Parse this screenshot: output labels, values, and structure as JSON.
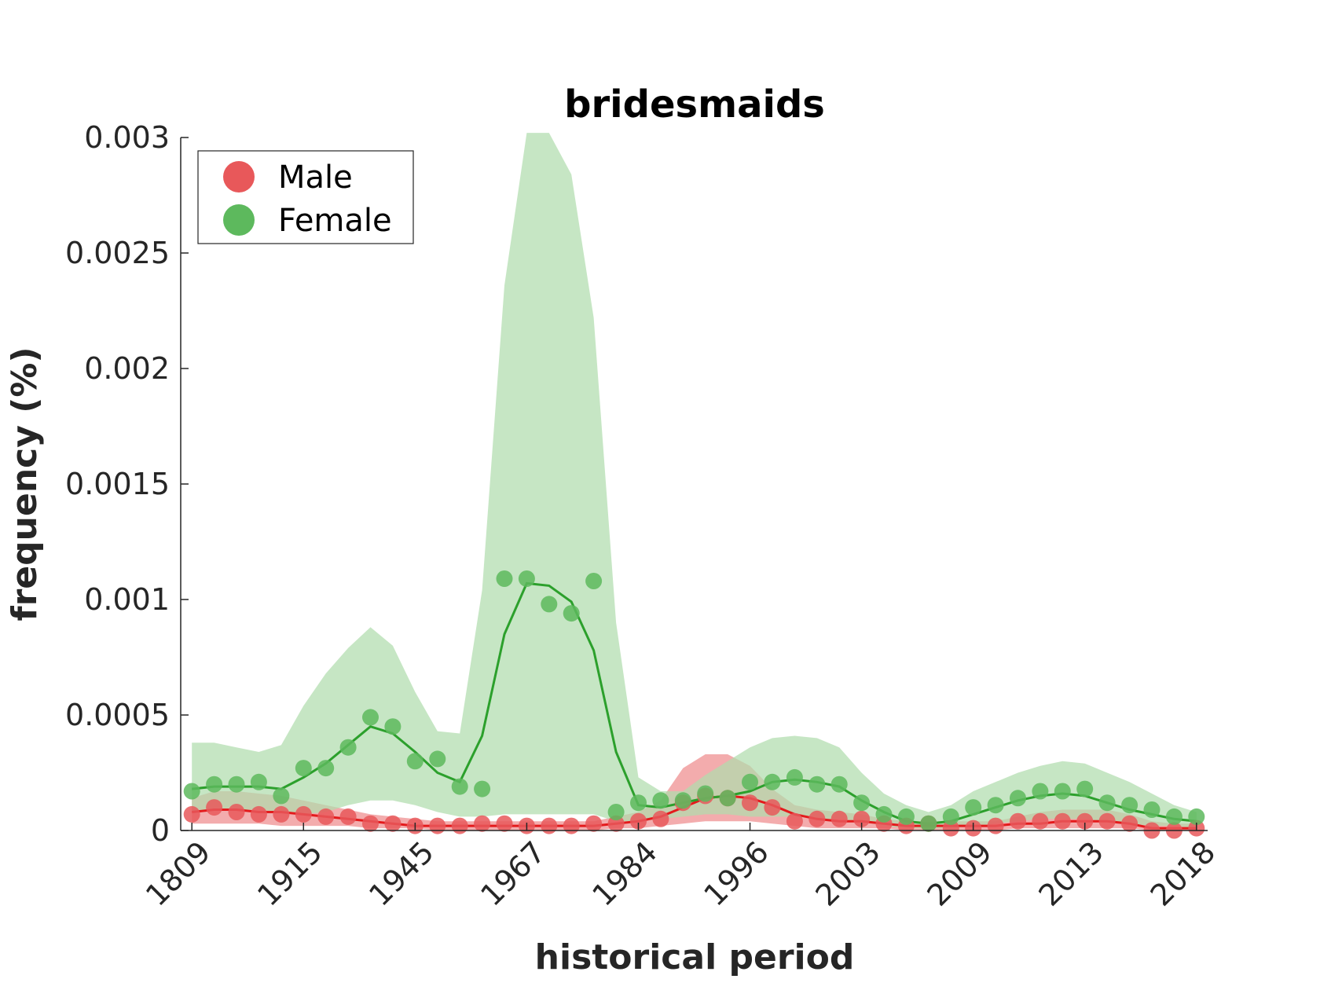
{
  "chart_data": {
    "type": "scatter",
    "title": "bridesmaids",
    "xlabel": "historical period",
    "ylabel": "frequency (%)",
    "ylim": [
      0,
      0.003
    ],
    "xlim": [
      -0.5,
      45.5
    ],
    "grid": false,
    "legend_position": "top-left",
    "y_ticks": [
      0,
      0.0005,
      0.001,
      0.0015,
      0.002,
      0.0025,
      0.003
    ],
    "y_tick_labels": [
      "0",
      "0.0005",
      "0.001",
      "0.0015",
      "0.002",
      "0.0025",
      "0.003"
    ],
    "x_ticks": [
      0,
      5,
      10,
      15,
      20,
      25,
      30,
      35,
      40,
      45
    ],
    "x_tick_labels": [
      "1809",
      "1915",
      "1945",
      "1967",
      "1984",
      "1996",
      "2003",
      "2009",
      "2013",
      "2018"
    ],
    "series": [
      {
        "name": "Male",
        "color": "#e41a1c",
        "point_color": "#e8585a",
        "band_color": "#ee8c8e",
        "points": [
          7e-05,
          0.0001,
          8e-05,
          7e-05,
          7e-05,
          7e-05,
          6e-05,
          6e-05,
          3e-05,
          3e-05,
          2e-05,
          2e-05,
          2e-05,
          3e-05,
          3e-05,
          2e-05,
          2e-05,
          2e-05,
          3e-05,
          3e-05,
          4e-05,
          5e-05,
          0.00012,
          0.00015,
          0.00014,
          0.00012,
          0.0001,
          4e-05,
          5e-05,
          5e-05,
          5e-05,
          3e-05,
          2e-05,
          3e-05,
          1e-05,
          1e-05,
          2e-05,
          4e-05,
          4e-05,
          4e-05,
          4e-05,
          4e-05,
          3e-05,
          0.0,
          0.0,
          1e-05
        ],
        "trend": [
          8e-05,
          9e-05,
          9e-05,
          8e-05,
          8e-05,
          7e-05,
          6e-05,
          5e-05,
          4e-05,
          3e-05,
          2e-05,
          2e-05,
          2e-05,
          2e-05,
          2e-05,
          2e-05,
          2e-05,
          2e-05,
          2e-05,
          3e-05,
          4e-05,
          6e-05,
          0.0001,
          0.00014,
          0.00015,
          0.00014,
          0.00011,
          7e-05,
          5e-05,
          4e-05,
          4e-05,
          3e-05,
          2e-05,
          2e-05,
          2e-05,
          2e-05,
          2e-05,
          3e-05,
          3e-05,
          4e-05,
          4e-05,
          4e-05,
          3e-05,
          1e-05,
          1e-05,
          1e-05
        ],
        "band_upper": [
          0.00014,
          0.00017,
          0.00017,
          0.00016,
          0.00015,
          0.00013,
          0.00011,
          9e-05,
          7e-05,
          6e-05,
          5e-05,
          4e-05,
          4e-05,
          4e-05,
          4e-05,
          4e-05,
          4e-05,
          4e-05,
          4e-05,
          6e-05,
          8e-05,
          0.00013,
          0.00027,
          0.00033,
          0.00033,
          0.00028,
          0.00018,
          0.00011,
          9e-05,
          8e-05,
          7e-05,
          5e-05,
          4e-05,
          4e-05,
          4e-05,
          4e-05,
          4e-05,
          6e-05,
          8e-05,
          9e-05,
          9e-05,
          9e-05,
          7e-05,
          4e-05,
          3e-05,
          3e-05
        ],
        "band_lower": [
          3e-05,
          3e-05,
          3e-05,
          3e-05,
          2e-05,
          2e-05,
          2e-05,
          2e-05,
          1e-05,
          1e-05,
          1e-05,
          0.0,
          0.0,
          0.0,
          0.0,
          0.0,
          0.0,
          0.0,
          0.0,
          1e-05,
          1e-05,
          2e-05,
          3e-05,
          4e-05,
          4e-05,
          4e-05,
          3e-05,
          2e-05,
          1e-05,
          1e-05,
          1e-05,
          1e-05,
          0.0,
          0.0,
          0.0,
          0.0,
          0.0,
          1e-05,
          1e-05,
          1e-05,
          1e-05,
          1e-05,
          1e-05,
          0.0,
          0.0,
          0.0
        ]
      },
      {
        "name": "Female",
        "color": "#2ca02c",
        "point_color": "#5db95d",
        "band_color": "#b0dcad",
        "points": [
          0.00017,
          0.0002,
          0.0002,
          0.00021,
          0.00015,
          0.00027,
          0.00027,
          0.00036,
          0.00049,
          0.00045,
          0.0003,
          0.00031,
          0.00019,
          0.00018,
          0.00109,
          0.00109,
          0.00098,
          0.00094,
          0.00108,
          8e-05,
          0.00012,
          0.00013,
          0.00013,
          0.00016,
          0.00014,
          0.00021,
          0.00021,
          0.00023,
          0.0002,
          0.0002,
          0.00012,
          7e-05,
          6e-05,
          3e-05,
          6e-05,
          0.0001,
          0.00011,
          0.00014,
          0.00017,
          0.00017,
          0.00018,
          0.00012,
          0.00011,
          9e-05,
          6e-05,
          6e-05
        ],
        "trend": [
          0.00018,
          0.00019,
          0.00019,
          0.00019,
          0.00018,
          0.00023,
          0.00029,
          0.00037,
          0.00045,
          0.00042,
          0.00034,
          0.00025,
          0.00021,
          0.00041,
          0.00085,
          0.00107,
          0.00106,
          0.00099,
          0.00078,
          0.00034,
          0.00011,
          0.0001,
          0.00012,
          0.00014,
          0.00015,
          0.00017,
          0.00021,
          0.00022,
          0.00021,
          0.00019,
          0.00013,
          8e-05,
          4e-05,
          3e-05,
          4e-05,
          7e-05,
          0.0001,
          0.00013,
          0.00015,
          0.00016,
          0.00015,
          0.00012,
          9e-05,
          7e-05,
          5e-05,
          4e-05
        ],
        "band_upper": [
          0.00038,
          0.00038,
          0.00036,
          0.00034,
          0.00037,
          0.00054,
          0.00068,
          0.00079,
          0.00088,
          0.0008,
          0.0006,
          0.00043,
          0.00042,
          0.00104,
          0.00236,
          0.00302,
          0.00302,
          0.00284,
          0.00222,
          0.0009,
          0.00023,
          0.00017,
          0.00017,
          0.00024,
          0.0003,
          0.00036,
          0.0004,
          0.00041,
          0.0004,
          0.00036,
          0.00025,
          0.00016,
          0.00011,
          8e-05,
          0.00011,
          0.00017,
          0.00021,
          0.00025,
          0.00028,
          0.0003,
          0.00029,
          0.00025,
          0.00021,
          0.00016,
          0.00011,
          8e-05
        ],
        "band_lower": [
          8e-05,
          9e-05,
          9e-05,
          9e-05,
          8e-05,
          7e-05,
          8e-05,
          0.00011,
          0.00013,
          0.00013,
          0.00011,
          8e-05,
          6e-05,
          6e-05,
          7e-05,
          7e-05,
          7e-05,
          7e-05,
          7e-05,
          4e-05,
          4e-05,
          5e-05,
          6e-05,
          7e-05,
          7e-05,
          6e-05,
          6e-05,
          6e-05,
          5e-05,
          5e-05,
          4e-05,
          2e-05,
          1e-05,
          1e-05,
          1e-05,
          2e-05,
          3e-05,
          4e-05,
          5e-05,
          5e-05,
          5e-05,
          4e-05,
          3e-05,
          2e-05,
          2e-05,
          1e-05
        ]
      }
    ]
  }
}
